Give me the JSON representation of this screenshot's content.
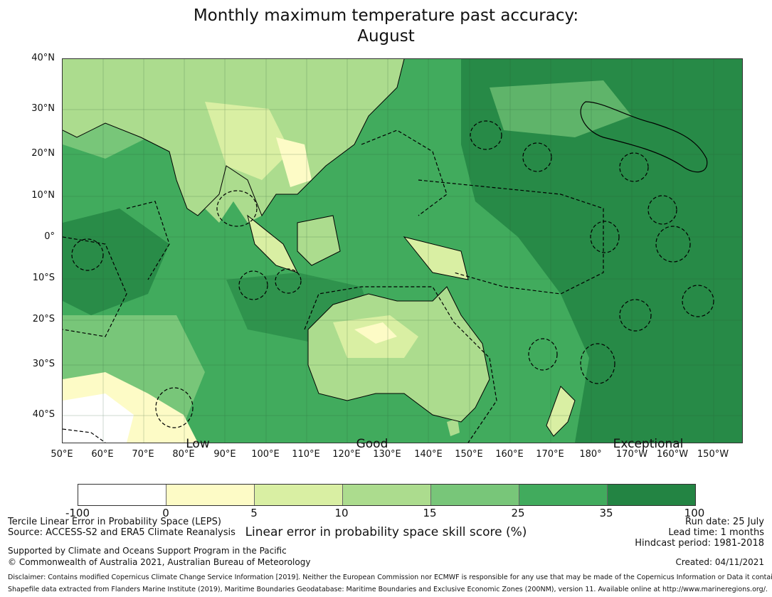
{
  "title": {
    "line1": "Monthly maximum temperature past accuracy:",
    "line2": "August"
  },
  "map": {
    "lat_labels": [
      "40°N",
      "30°N",
      "20°N",
      "10°N",
      "0°",
      "10°S",
      "20°S",
      "30°S",
      "40°S"
    ],
    "lon_labels": [
      "50°E",
      "60°E",
      "70°E",
      "80°E",
      "90°E",
      "100°E",
      "110°E",
      "120°E",
      "130°E",
      "140°E",
      "150°E",
      "160°E",
      "170°E",
      "180°",
      "170°W",
      "160°W",
      "150°W"
    ],
    "tier_labels": [
      "Low",
      "Good",
      "Exceptional"
    ]
  },
  "colorbar": {
    "colors": [
      "#ffffff",
      "#fdfbc6",
      "#d9efa3",
      "#acdc8e",
      "#78c679",
      "#41ab5d",
      "#238443"
    ],
    "ticks": [
      "-100",
      "0",
      "5",
      "10",
      "15",
      "25",
      "35",
      "100"
    ],
    "label": "Linear error in probability space skill score (%)"
  },
  "footer": {
    "method": "Tercile Linear Error in Probability Space (LEPS)",
    "source": "Source: ACCESS-S2 and ERA5 Climate Reanalysis",
    "support": "Supported by Climate and Oceans Support Program in the Pacific",
    "copyright": "© Commonwealth of Australia 2021, Australian Bureau of Meteorology",
    "disclaimer": "Disclaimer: Contains modified Copernicus Climate Change Service Information [2019]. Neither the European Commission nor ECMWF is responsible for any use that may be made of the Copernicus Information or Data it contains.",
    "shapefile": "Shapefile data extracted from Flanders Marine Institute (2019), Maritime Boundaries Geodatabase: Maritime Boundaries and Exclusive Economic Zones (200NM), version 11. Available online at http://www.marineregions.org/.",
    "run_date": "Run date: 25 July",
    "lead_time": "Lead time: 1 months",
    "hindcast": "Hindcast period: 1981-2018",
    "created": "Created: 04/11/2021"
  },
  "colors": {
    "ocean_high": "#238443",
    "ocean_mid": "#41ab5d",
    "land_low": "#d9efa3",
    "land_mid": "#acdc8e",
    "low_skill": "#fdfbc6"
  }
}
